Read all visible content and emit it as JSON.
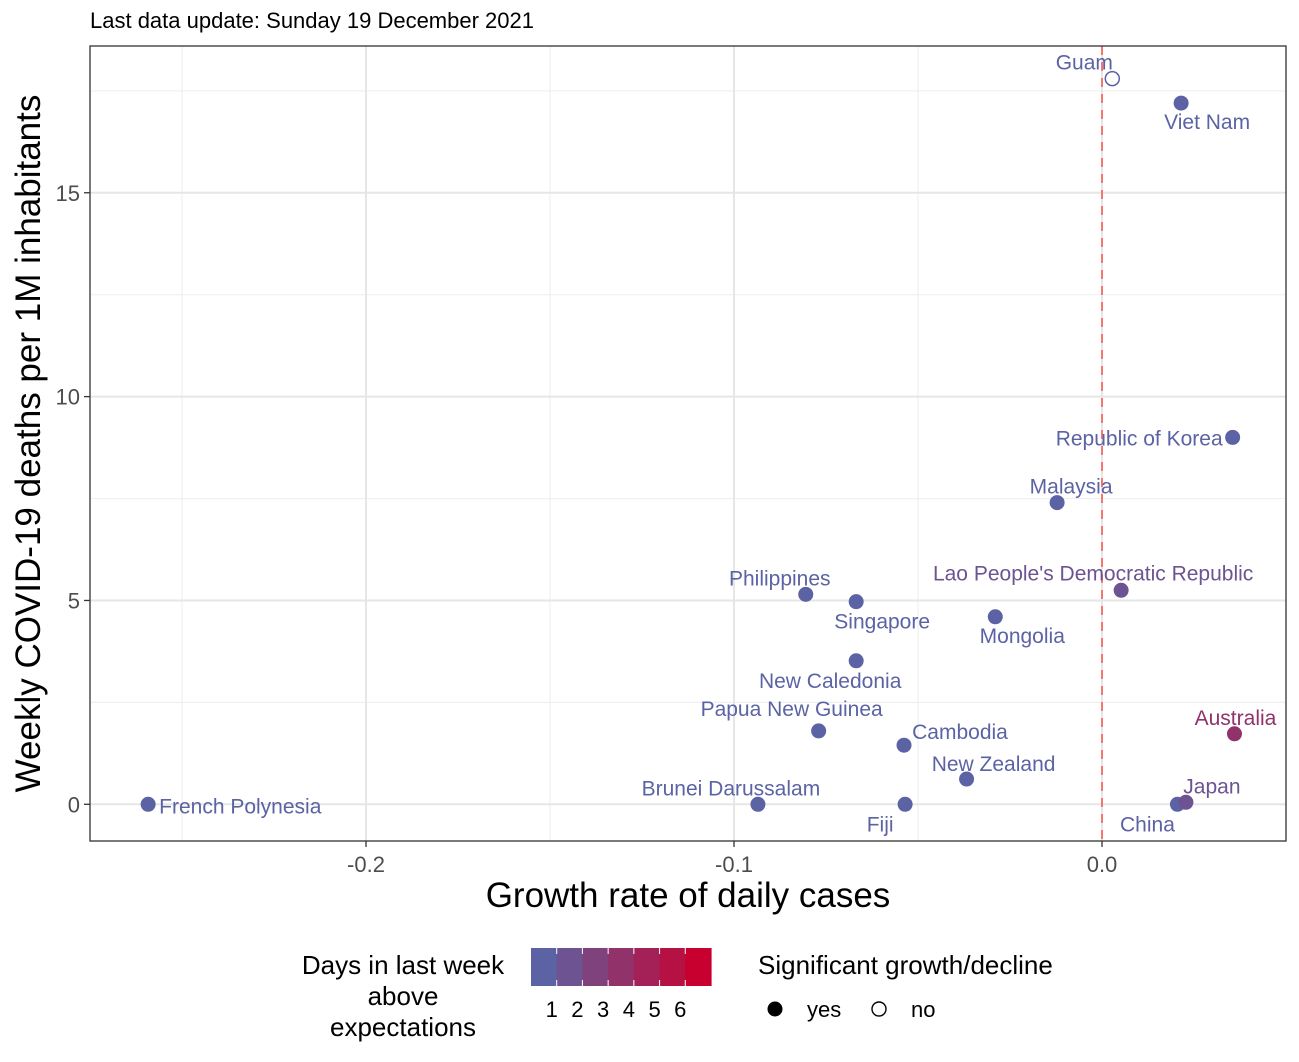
{
  "subtitle": "Last data update: Sunday 19 December 2021",
  "chart_data": {
    "type": "scatter",
    "xlabel": "Growth rate of daily cases",
    "ylabel": "Weekly COVID-19 deaths per 1M inhabitants",
    "xlim": [
      -0.275,
      0.05
    ],
    "ylim": [
      -0.9,
      18.6
    ],
    "x_ticks": [
      -0.2,
      -0.1,
      0.0
    ],
    "x_tick_labels": [
      "-0.2",
      "-0.1",
      "0.0"
    ],
    "y_ticks": [
      0,
      5,
      10,
      15
    ],
    "y_tick_labels": [
      "0",
      "5",
      "10",
      "15"
    ],
    "grid": true,
    "reference_line": {
      "x": 0.0,
      "style": "dashed",
      "color": "#f8766d"
    },
    "points": [
      {
        "label": "Guam",
        "x": 0.0028,
        "y": 17.8,
        "days": 1,
        "significant": "no"
      },
      {
        "label": "Viet Nam",
        "x": 0.0215,
        "y": 17.2,
        "days": 1,
        "significant": "yes"
      },
      {
        "label": "Republic of Korea",
        "x": 0.0355,
        "y": 9.0,
        "days": 1,
        "significant": "yes"
      },
      {
        "label": "Malaysia",
        "x": -0.0122,
        "y": 7.4,
        "days": 1,
        "significant": "yes"
      },
      {
        "label": "Lao People's Democratic Republic",
        "x": 0.0052,
        "y": 5.25,
        "days": 2,
        "significant": "yes"
      },
      {
        "label": "Philippines",
        "x": -0.0805,
        "y": 5.15,
        "days": 1,
        "significant": "yes"
      },
      {
        "label": "Singapore",
        "x": -0.0668,
        "y": 4.97,
        "days": 1,
        "significant": "yes"
      },
      {
        "label": "Mongolia",
        "x": -0.029,
        "y": 4.6,
        "days": 1,
        "significant": "yes"
      },
      {
        "label": "New Caledonia",
        "x": -0.0668,
        "y": 3.52,
        "days": 1,
        "significant": "yes"
      },
      {
        "label": "Papua New Guinea",
        "x": -0.077,
        "y": 1.8,
        "days": 1,
        "significant": "yes"
      },
      {
        "label": "Cambodia",
        "x": -0.0538,
        "y": 1.45,
        "days": 1,
        "significant": "yes"
      },
      {
        "label": "Australia",
        "x": 0.036,
        "y": 1.73,
        "days": 4,
        "significant": "yes"
      },
      {
        "label": "New Zealand",
        "x": -0.0368,
        "y": 0.62,
        "days": 1,
        "significant": "yes"
      },
      {
        "label": "French Polynesia",
        "x": -0.2592,
        "y": 0.0,
        "days": 1,
        "significant": "yes"
      },
      {
        "label": "Brunei Darussalam",
        "x": -0.0935,
        "y": 0.0,
        "days": 1,
        "significant": "yes"
      },
      {
        "label": "Fiji",
        "x": -0.0535,
        "y": 0.0,
        "days": 1,
        "significant": "yes"
      },
      {
        "label": "China",
        "x": 0.0205,
        "y": 0.0,
        "days": 1,
        "significant": "yes"
      },
      {
        "label": "Japan",
        "x": 0.0228,
        "y": 0.05,
        "days": 2,
        "significant": "yes"
      }
    ],
    "legend": {
      "color_title": "Days in last week\nabove\nexpectations",
      "color_ticks": [
        "1",
        "2",
        "3",
        "4",
        "5",
        "6"
      ],
      "color_low": "#5b63a4",
      "color_high": "#c7002f",
      "shape_title": "Significant growth/decline",
      "shape_items": [
        "yes",
        "no"
      ],
      "placement": "bottom"
    }
  }
}
